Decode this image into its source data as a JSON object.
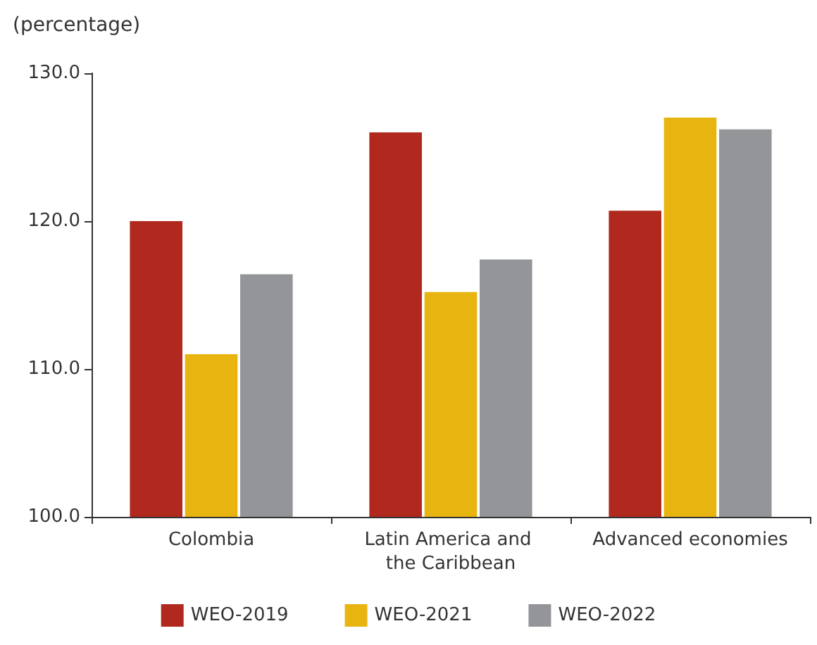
{
  "chart_data": {
    "type": "bar",
    "ylabel": "(percentage)",
    "categories": [
      "Colombia",
      "Latin America and the Caribbean",
      "Advanced economies"
    ],
    "series": [
      {
        "name": "WEO-2019",
        "color": "#b0281e",
        "values": [
          120.0,
          126.0,
          120.7
        ]
      },
      {
        "name": "WEO-2021",
        "color": "#e8b40f",
        "values": [
          111.0,
          115.2,
          127.0
        ]
      },
      {
        "name": "WEO-2022",
        "color": "#939598",
        "values": [
          116.4,
          117.4,
          126.2
        ]
      }
    ],
    "ylim": [
      100,
      130
    ],
    "yticks": [
      {
        "value": 100,
        "label": "100.0"
      },
      {
        "value": 110,
        "label": "110.0"
      },
      {
        "value": 120,
        "label": "120.0"
      },
      {
        "value": 130,
        "label": "130.0"
      }
    ],
    "grid": false,
    "legend": "bottom"
  }
}
